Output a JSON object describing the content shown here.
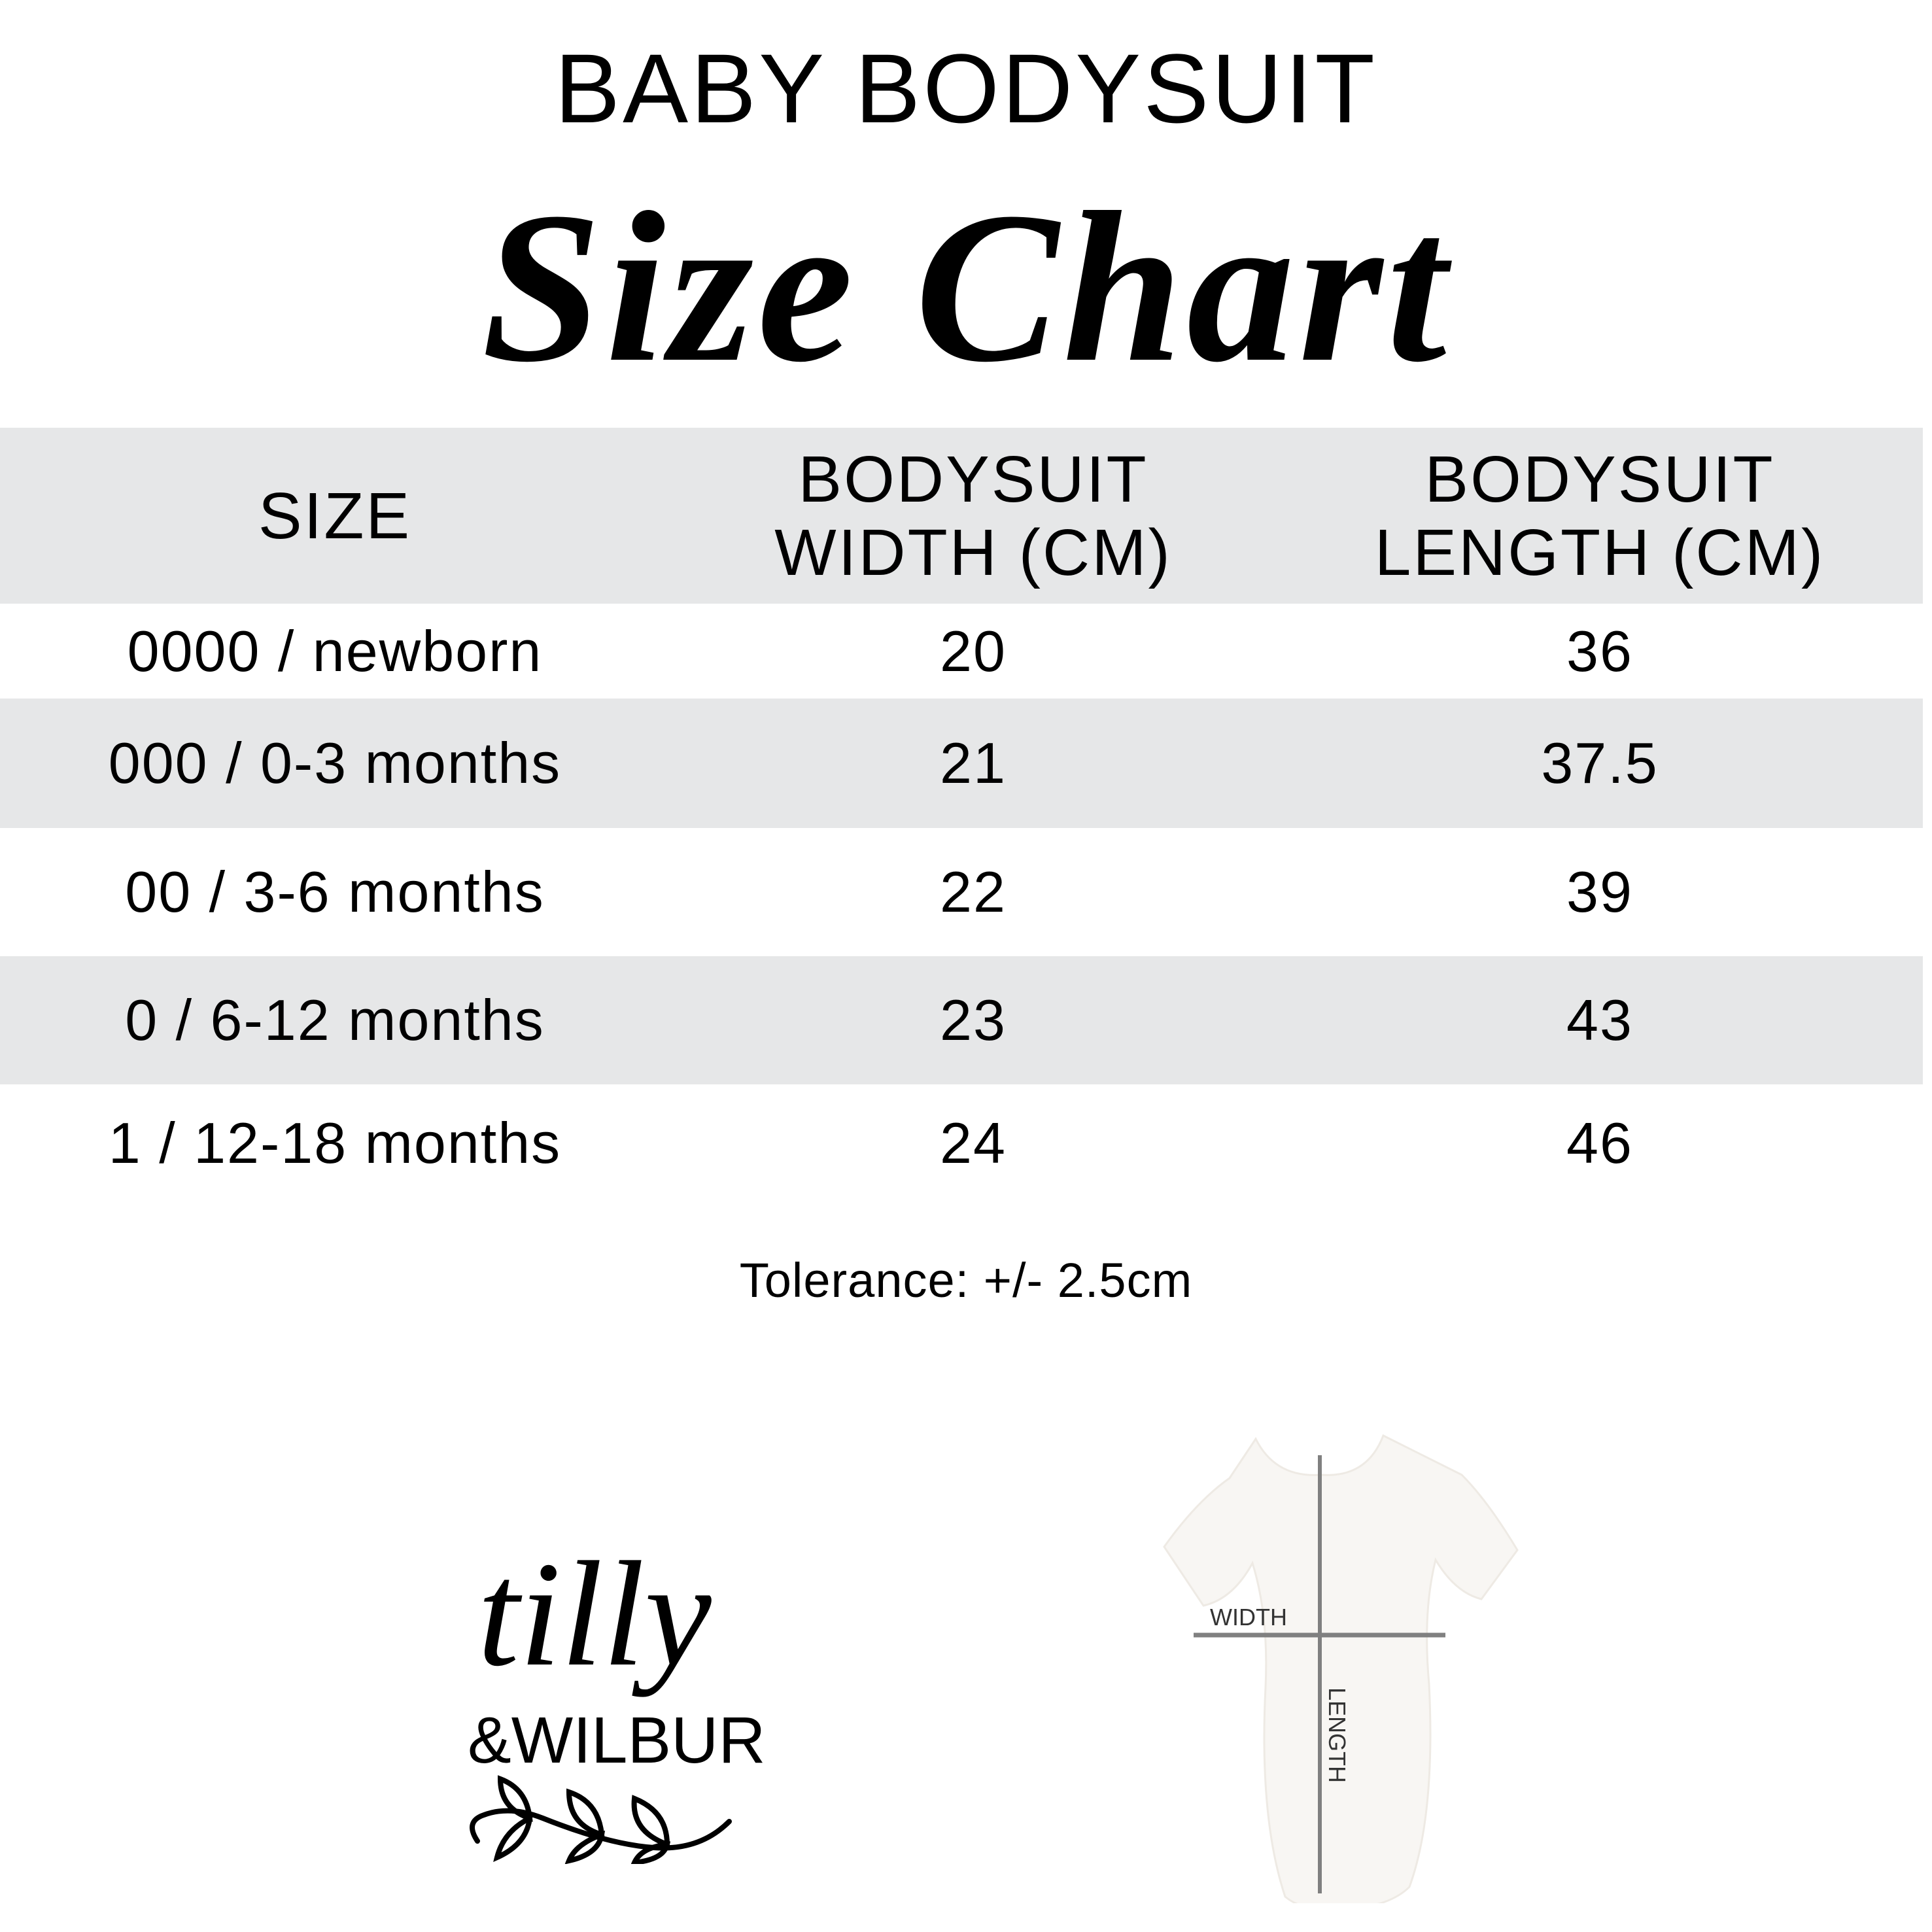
{
  "header": {
    "subtitle": "BABY BODYSUIT",
    "title": "Size Chart"
  },
  "table": {
    "columns": [
      "SIZE",
      "BODYSUIT WIDTH (CM)",
      "BODYSUIT LENGTH (CM)"
    ],
    "rows": [
      [
        "0000 / newborn",
        "20",
        "36"
      ],
      [
        "000 / 0-3 months",
        "21",
        "37.5"
      ],
      [
        "00 / 3-6 months",
        "22",
        "39"
      ],
      [
        "0 / 6-12 months",
        "23",
        "43"
      ],
      [
        "1 / 12-18 months",
        "24",
        "46"
      ]
    ],
    "header_bg": "#e6e7e8",
    "stripe_bg": "#e6e7e8"
  },
  "tolerance": "Tolerance: +/- 2.5cm",
  "logo": {
    "line1": "tilly",
    "line2": "&WILBUR"
  },
  "diagram": {
    "width_label": "WIDTH",
    "length_label": "LENGTH",
    "line_color": "#808080"
  }
}
